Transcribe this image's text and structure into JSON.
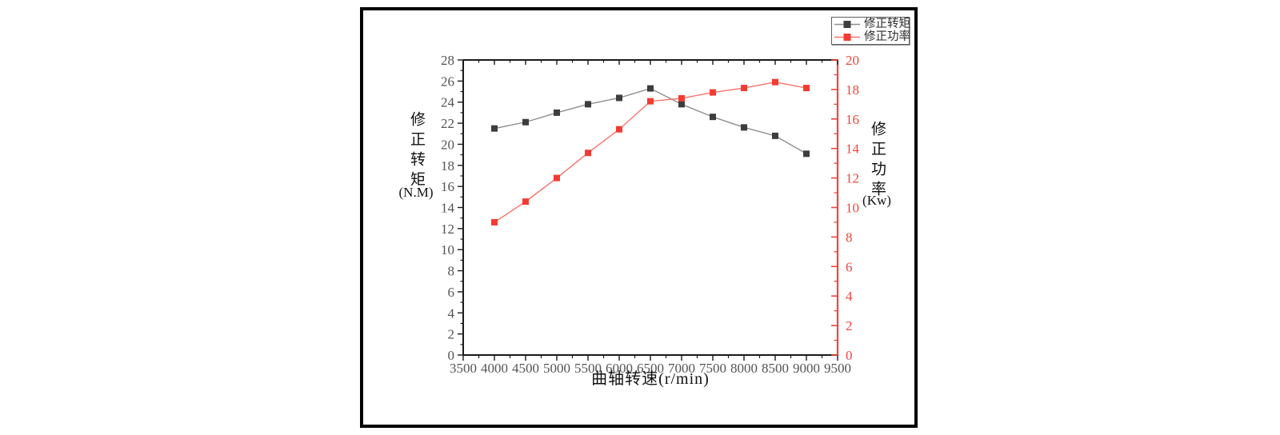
{
  "colors": {
    "torque_marker": "#3d3d3d",
    "torque_line": "#8e8e8e",
    "power_marker": "#f43b31",
    "power_line": "#f8736c",
    "axis_black": "#1a1a1a",
    "axis_red": "#f0453e",
    "tick_label_gray": "#545454",
    "tick_label_red": "#f0453e",
    "frame_border": "#000000",
    "legend_border": "#5f5f5f"
  },
  "chart_data": {
    "type": "line",
    "xlabel": "曲轴转速(r/min)",
    "ylabel_left": "修正转矩",
    "ylabel_left_unit": "(N.M)",
    "ylabel_right": "修正功率",
    "ylabel_right_unit": "(Kw)",
    "x_range": [
      3500,
      9500
    ],
    "x_ticks": [
      3500,
      4000,
      4500,
      5000,
      5500,
      6000,
      6500,
      7000,
      7500,
      8000,
      8500,
      9000,
      9500
    ],
    "x_minor_step": 250,
    "y_left": {
      "min": 0,
      "max": 28,
      "step": 2,
      "ticks": [
        0,
        2,
        4,
        6,
        8,
        10,
        12,
        14,
        16,
        18,
        20,
        22,
        24,
        26,
        28
      ]
    },
    "y_right": {
      "min": 0,
      "max": 20,
      "step": 2,
      "ticks": [
        0,
        2,
        4,
        6,
        8,
        10,
        12,
        14,
        16,
        18,
        20
      ]
    },
    "x": [
      4000,
      4500,
      5000,
      5500,
      6000,
      6500,
      7000,
      7500,
      8000,
      8500,
      9000
    ],
    "series": [
      {
        "name": "修正转矩",
        "axis": "left",
        "values": [
          21.5,
          22.1,
          23.0,
          23.8,
          24.4,
          25.3,
          23.8,
          22.6,
          21.6,
          20.8,
          19.1
        ]
      },
      {
        "name": "修正功率",
        "axis": "right",
        "values": [
          9.0,
          10.4,
          12.0,
          13.7,
          15.3,
          17.2,
          17.4,
          17.8,
          18.1,
          18.5,
          18.1
        ]
      }
    ],
    "legend_position": "top-right",
    "grid": false
  }
}
